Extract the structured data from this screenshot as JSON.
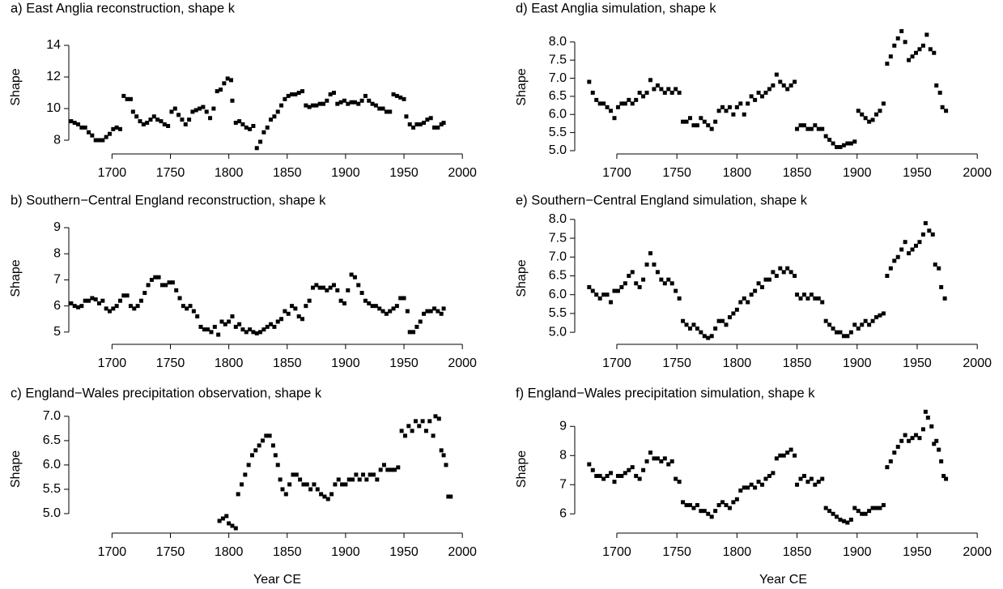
{
  "chart_data": [
    {
      "type": "scatter",
      "title": "a) East Anglia reconstruction, shape k",
      "ylabel": "Shape",
      "color": "#000000",
      "xlim": [
        1663,
        2020
      ],
      "ylim": [
        7.13,
        15.59
      ],
      "xticks": [
        1700,
        1750,
        1800,
        1850,
        1900,
        1950,
        2000
      ],
      "yticks": [
        8,
        10,
        12,
        14
      ],
      "x": [
        1665,
        1668,
        1671,
        1674,
        1677,
        1680,
        1683,
        1686,
        1689,
        1692,
        1695,
        1698,
        1701,
        1704,
        1707,
        1710,
        1713,
        1716,
        1718,
        1721,
        1724,
        1727,
        1730,
        1733,
        1736,
        1739,
        1742,
        1745,
        1748,
        1751,
        1754,
        1757,
        1760,
        1763,
        1766,
        1769,
        1772,
        1775,
        1778,
        1781,
        1784,
        1787,
        1790,
        1793,
        1796,
        1799,
        1802,
        1803,
        1806,
        1809,
        1812,
        1815,
        1818,
        1821,
        1824,
        1827,
        1830,
        1833,
        1836,
        1839,
        1842,
        1845,
        1848,
        1851,
        1854,
        1857,
        1860,
        1863,
        1866,
        1869,
        1872,
        1875,
        1878,
        1881,
        1884,
        1887,
        1890,
        1893,
        1896,
        1899,
        1902,
        1905,
        1908,
        1911,
        1914,
        1917,
        1920,
        1923,
        1926,
        1929,
        1932,
        1935,
        1938,
        1941,
        1944,
        1947,
        1950,
        1952,
        1955,
        1958,
        1961,
        1964,
        1967,
        1970,
        1973,
        1976,
        1979,
        1982,
        1984
      ],
      "values": [
        9.2,
        9.1,
        9.0,
        8.8,
        8.8,
        8.5,
        8.3,
        8.0,
        8.0,
        8.0,
        8.2,
        8.4,
        8.7,
        8.8,
        8.7,
        10.8,
        10.6,
        10.6,
        9.8,
        9.5,
        9.2,
        9.0,
        9.1,
        9.3,
        9.5,
        9.3,
        9.2,
        9.0,
        8.9,
        9.8,
        10.0,
        9.6,
        9.3,
        9.0,
        9.3,
        9.8,
        9.9,
        10.0,
        10.1,
        9.8,
        9.4,
        10.0,
        11.1,
        11.2,
        11.6,
        11.9,
        11.8,
        10.5,
        9.1,
        9.2,
        9.0,
        8.8,
        8.7,
        8.9,
        7.5,
        7.9,
        8.5,
        8.8,
        9.3,
        9.5,
        9.8,
        10.2,
        10.6,
        10.8,
        10.9,
        10.9,
        11.0,
        11.1,
        10.2,
        10.1,
        10.2,
        10.2,
        10.3,
        10.3,
        10.5,
        10.9,
        11.0,
        10.3,
        10.4,
        10.5,
        10.3,
        10.4,
        10.4,
        10.3,
        10.5,
        10.8,
        10.5,
        10.3,
        10.2,
        10.0,
        10.0,
        9.8,
        9.8,
        10.9,
        10.8,
        10.7,
        10.6,
        9.5,
        9.0,
        8.8,
        9.0,
        9.0,
        9.1,
        9.3,
        9.4,
        8.8,
        8.8,
        9.0,
        9.1
      ]
    },
    {
      "type": "scatter",
      "title": "b) Southern−Central England reconstruction, shape k",
      "ylabel": "Shape",
      "color": "#000000",
      "xlim": [
        1663,
        2020
      ],
      "ylim": [
        4.53,
        9.59
      ],
      "xticks": [
        1700,
        1750,
        1800,
        1850,
        1900,
        1950,
        2000
      ],
      "yticks": [
        5,
        6,
        7,
        8,
        9
      ],
      "x": [
        1665,
        1668,
        1671,
        1674,
        1677,
        1680,
        1683,
        1686,
        1689,
        1692,
        1695,
        1698,
        1701,
        1704,
        1707,
        1710,
        1713,
        1716,
        1719,
        1722,
        1725,
        1728,
        1731,
        1734,
        1737,
        1740,
        1743,
        1746,
        1749,
        1752,
        1755,
        1758,
        1761,
        1764,
        1767,
        1770,
        1773,
        1776,
        1779,
        1782,
        1785,
        1788,
        1791,
        1794,
        1797,
        1800,
        1803,
        1806,
        1809,
        1812,
        1815,
        1818,
        1821,
        1824,
        1827,
        1830,
        1833,
        1836,
        1839,
        1842,
        1845,
        1848,
        1851,
        1854,
        1857,
        1860,
        1863,
        1866,
        1869,
        1872,
        1875,
        1878,
        1881,
        1884,
        1887,
        1890,
        1893,
        1896,
        1899,
        1902,
        1905,
        1908,
        1911,
        1914,
        1917,
        1920,
        1923,
        1926,
        1929,
        1932,
        1935,
        1938,
        1941,
        1944,
        1947,
        1950,
        1953,
        1955,
        1958,
        1961,
        1964,
        1967,
        1970,
        1973,
        1976,
        1979,
        1982,
        1984
      ],
      "values": [
        6.1,
        6.0,
        5.95,
        6.0,
        6.2,
        6.2,
        6.3,
        6.25,
        6.1,
        6.2,
        5.9,
        5.8,
        5.9,
        6.0,
        6.2,
        6.4,
        6.4,
        6.0,
        5.9,
        6.0,
        6.2,
        6.5,
        6.8,
        7.0,
        7.1,
        7.1,
        6.8,
        6.8,
        6.9,
        6.9,
        6.6,
        6.3,
        6.0,
        5.9,
        6.0,
        5.8,
        5.6,
        5.2,
        5.1,
        5.1,
        5.0,
        5.2,
        4.9,
        5.4,
        5.3,
        5.4,
        5.6,
        5.2,
        5.3,
        5.1,
        5.0,
        5.1,
        5.0,
        4.95,
        5.0,
        5.1,
        5.2,
        5.3,
        5.2,
        5.4,
        5.5,
        5.8,
        5.7,
        6.0,
        5.9,
        5.6,
        5.5,
        6.0,
        6.2,
        6.7,
        6.8,
        6.7,
        6.7,
        6.6,
        6.7,
        6.8,
        6.6,
        6.2,
        6.1,
        6.6,
        7.2,
        7.1,
        6.8,
        6.5,
        6.2,
        6.1,
        6.0,
        6.0,
        5.9,
        5.8,
        5.7,
        5.8,
        5.9,
        6.0,
        6.3,
        6.3,
        5.8,
        5.0,
        5.0,
        5.2,
        5.4,
        5.7,
        5.8,
        5.8,
        5.9,
        5.8,
        5.7,
        5.9
      ]
    },
    {
      "type": "scatter",
      "title": "c) England−Wales precipitation observation, shape k",
      "ylabel": "Shape",
      "xlabel": "Year CE",
      "color": "#000000",
      "xlim": [
        1663,
        2020
      ],
      "ylim": [
        4.6,
        7.23
      ],
      "xticks": [
        1700,
        1750,
        1800,
        1850,
        1900,
        1950,
        2000
      ],
      "yticks": [
        {
          "value": 5,
          "label": "5.0"
        },
        5.5,
        {
          "value": 6,
          "label": "6.0"
        },
        6.5,
        {
          "value": 7,
          "label": "7.0"
        }
      ],
      "x": [
        1792,
        1795,
        1798,
        1800,
        1803,
        1806,
        1808,
        1811,
        1814,
        1817,
        1820,
        1823,
        1826,
        1829,
        1832,
        1835,
        1838,
        1840,
        1842,
        1844,
        1846,
        1849,
        1852,
        1855,
        1858,
        1861,
        1864,
        1867,
        1870,
        1873,
        1876,
        1879,
        1882,
        1885,
        1888,
        1891,
        1894,
        1897,
        1900,
        1903,
        1906,
        1909,
        1912,
        1915,
        1918,
        1921,
        1924,
        1927,
        1930,
        1933,
        1936,
        1939,
        1942,
        1945,
        1948,
        1951,
        1954,
        1957,
        1960,
        1963,
        1966,
        1969,
        1972,
        1975,
        1977,
        1980,
        1982,
        1984,
        1986,
        1988,
        1990
      ],
      "values": [
        4.85,
        4.9,
        4.95,
        4.8,
        4.75,
        4.7,
        5.4,
        5.6,
        5.8,
        6.0,
        6.2,
        6.3,
        6.4,
        6.5,
        6.6,
        6.6,
        6.4,
        6.2,
        6.0,
        5.7,
        5.5,
        5.4,
        5.6,
        5.8,
        5.8,
        5.7,
        5.6,
        5.6,
        5.5,
        5.6,
        5.5,
        5.4,
        5.35,
        5.3,
        5.4,
        5.6,
        5.7,
        5.6,
        5.6,
        5.7,
        5.7,
        5.8,
        5.7,
        5.8,
        5.7,
        5.8,
        5.8,
        5.7,
        5.9,
        6.0,
        5.9,
        5.9,
        5.9,
        5.95,
        6.7,
        6.6,
        6.8,
        6.7,
        6.9,
        6.8,
        6.9,
        6.7,
        6.9,
        6.6,
        7.0,
        6.95,
        6.3,
        6.2,
        6.0,
        5.35,
        5.35
      ]
    },
    {
      "type": "scatter",
      "title": "d) East Anglia simulation, shape k",
      "ylabel": "Shape",
      "color": "#000000",
      "xlim": [
        1665,
        2012
      ],
      "ylim": [
        4.91,
        8.6
      ],
      "xticks": [
        1700,
        1750,
        1800,
        1850,
        1900,
        1950,
        2000
      ],
      "yticks": [
        {
          "value": 5,
          "label": "5.0"
        },
        5.5,
        {
          "value": 6,
          "label": "6.0"
        },
        6.5,
        {
          "value": 7,
          "label": "7.0"
        },
        7.5,
        {
          "value": 8,
          "label": "8.0"
        }
      ],
      "x": [
        1677,
        1680,
        1683,
        1686,
        1689,
        1692,
        1695,
        1698,
        1701,
        1704,
        1707,
        1710,
        1713,
        1716,
        1719,
        1722,
        1725,
        1728,
        1731,
        1734,
        1737,
        1740,
        1743,
        1746,
        1749,
        1752,
        1755,
        1758,
        1761,
        1764,
        1767,
        1770,
        1773,
        1776,
        1779,
        1782,
        1785,
        1788,
        1791,
        1794,
        1797,
        1800,
        1803,
        1806,
        1809,
        1812,
        1815,
        1818,
        1821,
        1824,
        1827,
        1830,
        1833,
        1836,
        1839,
        1842,
        1845,
        1848,
        1850,
        1853,
        1856,
        1859,
        1862,
        1865,
        1868,
        1871,
        1874,
        1877,
        1880,
        1883,
        1886,
        1889,
        1892,
        1895,
        1898,
        1901,
        1904,
        1907,
        1910,
        1913,
        1916,
        1919,
        1922,
        1925,
        1928,
        1931,
        1934,
        1937,
        1940,
        1943,
        1946,
        1949,
        1952,
        1955,
        1958,
        1961,
        1964,
        1966,
        1969,
        1971,
        1974
      ],
      "values": [
        6.9,
        6.6,
        6.4,
        6.3,
        6.3,
        6.2,
        6.1,
        5.9,
        6.2,
        6.3,
        6.3,
        6.4,
        6.3,
        6.4,
        6.6,
        6.5,
        6.6,
        6.95,
        6.7,
        6.8,
        6.7,
        6.6,
        6.7,
        6.6,
        6.7,
        6.6,
        5.8,
        5.8,
        5.9,
        5.7,
        5.7,
        5.9,
        5.8,
        5.7,
        5.6,
        5.8,
        6.1,
        6.2,
        6.1,
        6.2,
        6.0,
        6.2,
        6.3,
        6.0,
        6.3,
        6.5,
        6.4,
        6.6,
        6.5,
        6.6,
        6.7,
        6.8,
        7.1,
        6.9,
        6.8,
        6.7,
        6.8,
        6.9,
        5.6,
        5.7,
        5.7,
        5.6,
        5.6,
        5.7,
        5.6,
        5.6,
        5.4,
        5.3,
        5.2,
        5.1,
        5.1,
        5.15,
        5.2,
        5.2,
        5.25,
        6.1,
        6.0,
        5.9,
        5.8,
        5.85,
        6.0,
        6.1,
        6.3,
        7.4,
        7.6,
        7.9,
        8.1,
        8.3,
        8.0,
        7.5,
        7.6,
        7.7,
        7.8,
        7.9,
        8.2,
        7.8,
        7.7,
        6.8,
        6.6,
        6.2,
        6.1
      ]
    },
    {
      "type": "scatter",
      "title": "e) Southern−Central England simulation, shape k",
      "ylabel": "Shape",
      "color": "#000000",
      "xlim": [
        1665,
        2012
      ],
      "ylim": [
        4.68,
        8.19
      ],
      "xticks": [
        1700,
        1750,
        1800,
        1850,
        1900,
        1950,
        2000
      ],
      "yticks": [
        {
          "value": 5,
          "label": "5.0"
        },
        5.5,
        {
          "value": 6,
          "label": "6.0"
        },
        6.5,
        {
          "value": 7,
          "label": "7.0"
        },
        7.5,
        {
          "value": 8,
          "label": "8.0"
        }
      ],
      "x": [
        1677,
        1680,
        1683,
        1686,
        1689,
        1692,
        1695,
        1698,
        1701,
        1704,
        1707,
        1710,
        1713,
        1716,
        1719,
        1722,
        1725,
        1728,
        1731,
        1734,
        1737,
        1740,
        1743,
        1746,
        1749,
        1752,
        1755,
        1758,
        1761,
        1764,
        1767,
        1770,
        1773,
        1776,
        1779,
        1782,
        1785,
        1788,
        1791,
        1794,
        1797,
        1800,
        1803,
        1806,
        1809,
        1812,
        1815,
        1818,
        1821,
        1824,
        1827,
        1830,
        1833,
        1836,
        1839,
        1842,
        1845,
        1848,
        1850,
        1853,
        1856,
        1859,
        1862,
        1865,
        1868,
        1871,
        1874,
        1877,
        1880,
        1883,
        1886,
        1889,
        1892,
        1895,
        1898,
        1901,
        1904,
        1907,
        1910,
        1913,
        1916,
        1919,
        1922,
        1925,
        1928,
        1931,
        1934,
        1937,
        1940,
        1943,
        1946,
        1949,
        1952,
        1955,
        1957,
        1960,
        1963,
        1965,
        1968,
        1970,
        1973
      ],
      "values": [
        6.2,
        6.1,
        6.0,
        5.9,
        6.0,
        6.0,
        5.8,
        6.1,
        6.1,
        6.2,
        6.3,
        6.5,
        6.6,
        6.3,
        6.2,
        6.4,
        6.8,
        7.1,
        6.8,
        6.6,
        6.4,
        6.3,
        6.4,
        6.3,
        6.1,
        5.9,
        5.3,
        5.2,
        5.1,
        5.2,
        5.1,
        5.0,
        4.9,
        4.85,
        4.9,
        5.1,
        5.3,
        5.3,
        5.2,
        5.4,
        5.5,
        5.6,
        5.8,
        5.9,
        5.8,
        6.0,
        6.1,
        6.3,
        6.2,
        6.4,
        6.4,
        6.6,
        6.5,
        6.7,
        6.6,
        6.7,
        6.6,
        6.5,
        6.0,
        5.9,
        6.0,
        5.9,
        6.0,
        5.9,
        5.9,
        5.8,
        5.3,
        5.2,
        5.1,
        5.0,
        5.0,
        4.9,
        4.9,
        5.0,
        5.2,
        5.1,
        5.2,
        5.3,
        5.2,
        5.3,
        5.4,
        5.45,
        5.5,
        6.5,
        6.7,
        6.9,
        7.0,
        7.2,
        7.4,
        7.1,
        7.2,
        7.3,
        7.4,
        7.6,
        7.9,
        7.7,
        7.6,
        6.8,
        6.7,
        6.2,
        5.9
      ]
    },
    {
      "type": "scatter",
      "title": "f) England−Wales precipitation simulation, shape k",
      "ylabel": "Shape",
      "xlabel": "Year CE",
      "color": "#000000",
      "xlim": [
        1665,
        2012
      ],
      "ylim": [
        5.34,
        9.73
      ],
      "xticks": [
        1700,
        1750,
        1800,
        1850,
        1900,
        1950,
        2000
      ],
      "yticks": [
        6,
        7,
        8,
        9
      ],
      "x": [
        1677,
        1680,
        1683,
        1686,
        1689,
        1692,
        1695,
        1698,
        1701,
        1704,
        1707,
        1710,
        1713,
        1716,
        1719,
        1722,
        1725,
        1728,
        1731,
        1734,
        1737,
        1740,
        1743,
        1746,
        1749,
        1752,
        1755,
        1758,
        1761,
        1764,
        1767,
        1770,
        1773,
        1776,
        1779,
        1782,
        1785,
        1788,
        1791,
        1794,
        1797,
        1800,
        1803,
        1806,
        1809,
        1812,
        1815,
        1818,
        1821,
        1824,
        1827,
        1830,
        1833,
        1836,
        1839,
        1842,
        1845,
        1848,
        1850,
        1853,
        1856,
        1859,
        1862,
        1865,
        1868,
        1871,
        1874,
        1877,
        1880,
        1883,
        1886,
        1889,
        1892,
        1895,
        1898,
        1901,
        1904,
        1907,
        1910,
        1913,
        1916,
        1919,
        1922,
        1925,
        1928,
        1931,
        1934,
        1937,
        1940,
        1943,
        1946,
        1949,
        1952,
        1955,
        1957,
        1959,
        1962,
        1964,
        1966,
        1968,
        1970,
        1972,
        1974
      ],
      "values": [
        7.7,
        7.5,
        7.3,
        7.3,
        7.2,
        7.3,
        7.4,
        7.1,
        7.3,
        7.3,
        7.4,
        7.5,
        7.6,
        7.3,
        7.2,
        7.5,
        7.8,
        8.1,
        7.9,
        7.9,
        7.8,
        7.9,
        7.7,
        7.8,
        7.2,
        7.1,
        6.4,
        6.3,
        6.3,
        6.2,
        6.3,
        6.1,
        6.1,
        6.0,
        5.9,
        6.1,
        6.3,
        6.4,
        6.3,
        6.2,
        6.4,
        6.5,
        6.8,
        6.9,
        6.9,
        7.0,
        6.9,
        7.1,
        7.0,
        7.2,
        7.3,
        7.4,
        7.9,
        8.0,
        8.0,
        8.1,
        8.2,
        8.0,
        7.0,
        7.2,
        7.3,
        7.1,
        7.2,
        7.0,
        7.1,
        7.2,
        6.2,
        6.1,
        6.0,
        5.9,
        5.8,
        5.75,
        5.7,
        5.8,
        6.2,
        6.1,
        6.0,
        6.0,
        6.1,
        6.2,
        6.2,
        6.2,
        6.3,
        7.6,
        7.8,
        8.1,
        8.3,
        8.5,
        8.7,
        8.5,
        8.6,
        8.7,
        8.6,
        8.9,
        9.5,
        9.3,
        9.0,
        8.4,
        8.5,
        8.2,
        7.8,
        7.3,
        7.2
      ]
    }
  ]
}
